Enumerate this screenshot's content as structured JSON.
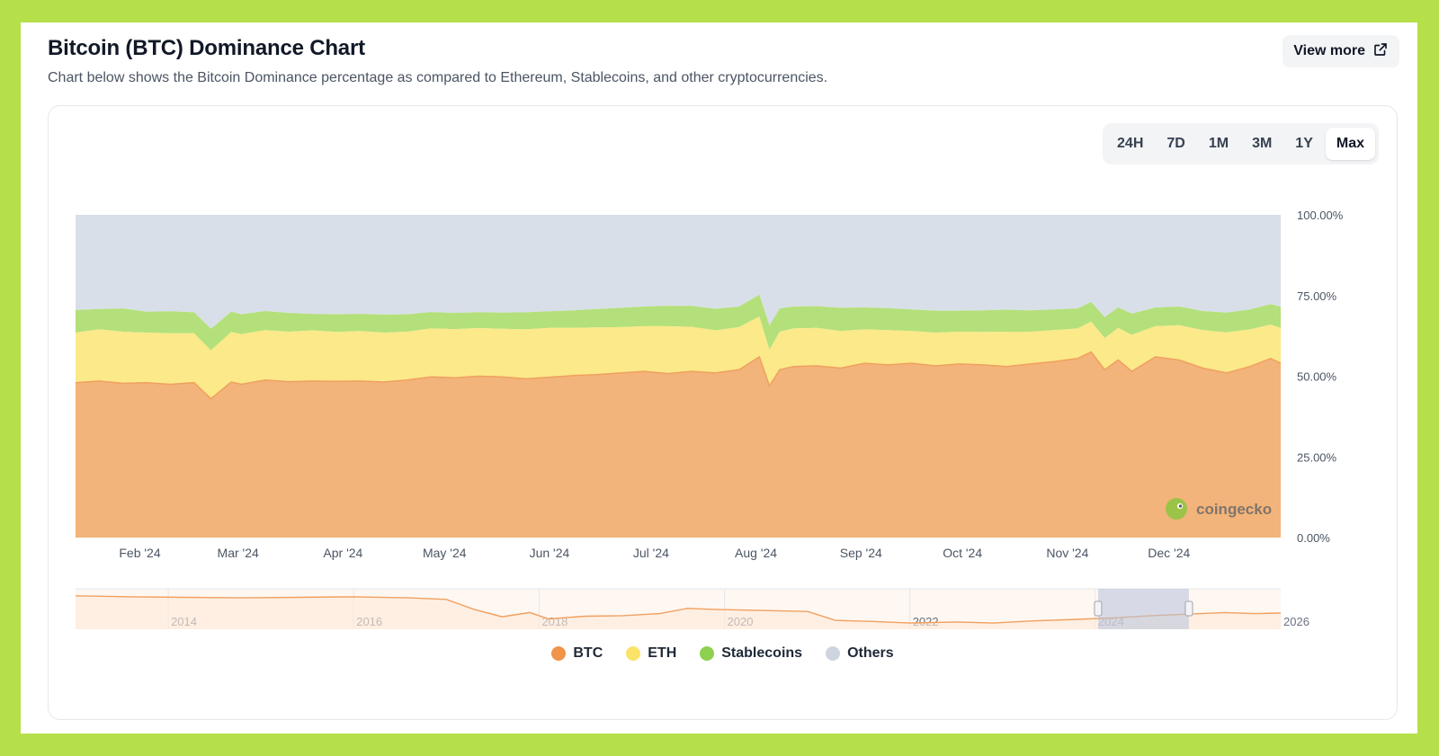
{
  "header": {
    "title": "Bitcoin (BTC) Dominance Chart",
    "subtitle": "Chart below shows the Bitcoin Dominance percentage as compared to Ethereum, Stablecoins, and other cryptocurrencies.",
    "view_more_label": "View more"
  },
  "ranges": {
    "items": [
      "24H",
      "7D",
      "1M",
      "3M",
      "1Y",
      "Max"
    ],
    "active": "Max"
  },
  "watermark": "coingecko",
  "colors": {
    "btc": "#f2b47a",
    "btc_line": "#f0a060",
    "eth": "#fbe98a",
    "stablecoins": "#b3e07a",
    "others": "#d9dfe8",
    "legend_btc": "#f0944a",
    "legend_eth": "#fbe36a",
    "legend_stablecoins": "#8ed04f",
    "legend_others": "#cfd5e0"
  },
  "chart_data": {
    "type": "area",
    "stacked": true,
    "x_labels": [
      "Feb '24",
      "Mar '24",
      "Apr '24",
      "May '24",
      "Jun '24",
      "Jul '24",
      "Aug '24",
      "Sep '24",
      "Oct '24",
      "Nov '24",
      "Dec '24"
    ],
    "y_ticks": [
      "0.00%",
      "25.00%",
      "50.00%",
      "75.00%",
      "100.00%"
    ],
    "ylim": [
      0,
      100
    ],
    "x": [
      "2024-01-13",
      "2024-01-20",
      "2024-01-27",
      "2024-02-03",
      "2024-02-10",
      "2024-02-17",
      "2024-02-22",
      "2024-02-28",
      "2024-03-02",
      "2024-03-09",
      "2024-03-16",
      "2024-03-23",
      "2024-03-30",
      "2024-04-06",
      "2024-04-13",
      "2024-04-20",
      "2024-04-27",
      "2024-05-04",
      "2024-05-11",
      "2024-05-18",
      "2024-05-25",
      "2024-06-01",
      "2024-06-08",
      "2024-06-15",
      "2024-06-22",
      "2024-06-29",
      "2024-07-06",
      "2024-07-13",
      "2024-07-20",
      "2024-07-27",
      "2024-08-02",
      "2024-08-05",
      "2024-08-08",
      "2024-08-12",
      "2024-08-19",
      "2024-08-26",
      "2024-09-02",
      "2024-09-09",
      "2024-09-16",
      "2024-09-23",
      "2024-09-30",
      "2024-10-07",
      "2024-10-14",
      "2024-10-21",
      "2024-10-28",
      "2024-11-04",
      "2024-11-08",
      "2024-11-12",
      "2024-11-16",
      "2024-11-20",
      "2024-11-27",
      "2024-12-04",
      "2024-12-11",
      "2024-12-18",
      "2024-12-25",
      "2024-12-31",
      "2025-01-03"
    ],
    "series": [
      {
        "name": "BTC",
        "values": [
          48,
          48.5,
          47.8,
          48,
          47.5,
          48,
          43,
          48.2,
          47.5,
          48.8,
          48.3,
          48.5,
          48.4,
          48.5,
          48.2,
          48.8,
          49.8,
          49.5,
          50,
          49.8,
          49.2,
          49.7,
          50.2,
          50.5,
          51,
          51.5,
          50.8,
          51.5,
          51,
          52,
          56,
          47,
          52,
          53,
          53.2,
          52.5,
          54,
          53.5,
          54,
          53.2,
          53.8,
          53.5,
          53,
          53.8,
          54.5,
          55.5,
          57.5,
          52,
          55,
          51.5,
          56,
          55,
          52.5,
          51,
          53,
          55.5,
          54
        ]
      },
      {
        "name": "ETH",
        "values": [
          15.5,
          16,
          16,
          15.5,
          15.8,
          15.3,
          15,
          15.5,
          15.5,
          15.5,
          15.5,
          15.7,
          15.3,
          15.5,
          15.3,
          15,
          15,
          15.1,
          14.9,
          14.9,
          15.3,
          15.3,
          14.8,
          14.6,
          14.2,
          14,
          14.7,
          13.8,
          13.2,
          13.2,
          12.5,
          11.2,
          11.8,
          11.8,
          11.8,
          11.5,
          10.5,
          10.8,
          10,
          10.3,
          10,
          10.2,
          10.8,
          10,
          9.8,
          9.3,
          9.4,
          9.8,
          10,
          11.3,
          9.5,
          10.8,
          11.8,
          12.6,
          11.5,
          10.5,
          11
        ]
      },
      {
        "name": "Stablecoins",
        "values": [
          7,
          6.3,
          7.2,
          6.5,
          6.8,
          6.5,
          6.7,
          6.3,
          6.2,
          5.9,
          5.8,
          5.1,
          5.5,
          5.3,
          5.6,
          5.4,
          5.1,
          5,
          4.9,
          5,
          5.3,
          5.1,
          5.4,
          5.7,
          6,
          6.1,
          6.3,
          6.5,
          6.7,
          6.4,
          6.8,
          7.5,
          7.2,
          6.8,
          6.7,
          7.2,
          6.8,
          6.8,
          6.7,
          6.8,
          6.5,
          6.7,
          6.8,
          6.6,
          6.4,
          6.2,
          6.1,
          6.5,
          6.3,
          6.6,
          5.8,
          5.8,
          5.9,
          6.1,
          6.2,
          6.3,
          6.5
        ]
      },
      {
        "name": "Others",
        "values": [
          29.5,
          29.2,
          29,
          30,
          29.9,
          30.2,
          35.3,
          30,
          30.8,
          29.8,
          30.4,
          30.7,
          30.8,
          30.7,
          30.9,
          30.8,
          30.1,
          30.4,
          30.2,
          30.3,
          30.2,
          29.9,
          29.6,
          29.2,
          28.8,
          28.4,
          28.2,
          28.2,
          29.1,
          28.4,
          24.7,
          34.3,
          29,
          28.4,
          28.3,
          28.8,
          28.7,
          28.9,
          29.3,
          29.7,
          29.7,
          29.6,
          29.4,
          29.6,
          29.3,
          29,
          27,
          31.7,
          28.7,
          30.6,
          28.7,
          28.4,
          29.8,
          30.3,
          29.3,
          27.7,
          28.5
        ]
      }
    ],
    "navigator": {
      "x_labels": [
        "2014",
        "2016",
        "2018",
        "2020",
        "2022",
        "2024",
        "2026"
      ],
      "btc_x": [
        2013.0,
        2013.6,
        2014.2,
        2014.8,
        2015.4,
        2016.0,
        2016.6,
        2017.0,
        2017.3,
        2017.6,
        2017.9,
        2018.1,
        2018.5,
        2018.9,
        2019.3,
        2019.6,
        2019.9,
        2020.4,
        2020.9,
        2021.2,
        2021.6,
        2022.0,
        2022.5,
        2022.9,
        2023.3,
        2023.8,
        2024.2,
        2024.6,
        2025.0,
        2025.4,
        2025.7,
        2026.0
      ],
      "btc_values": [
        92,
        90,
        89,
        88,
        89,
        90,
        88,
        85,
        66,
        52,
        60,
        48,
        53,
        54,
        58,
        68,
        66,
        64,
        62,
        45,
        43,
        40,
        42,
        40,
        44,
        47,
        50,
        54,
        57,
        60,
        58,
        59
      ]
    }
  }
}
